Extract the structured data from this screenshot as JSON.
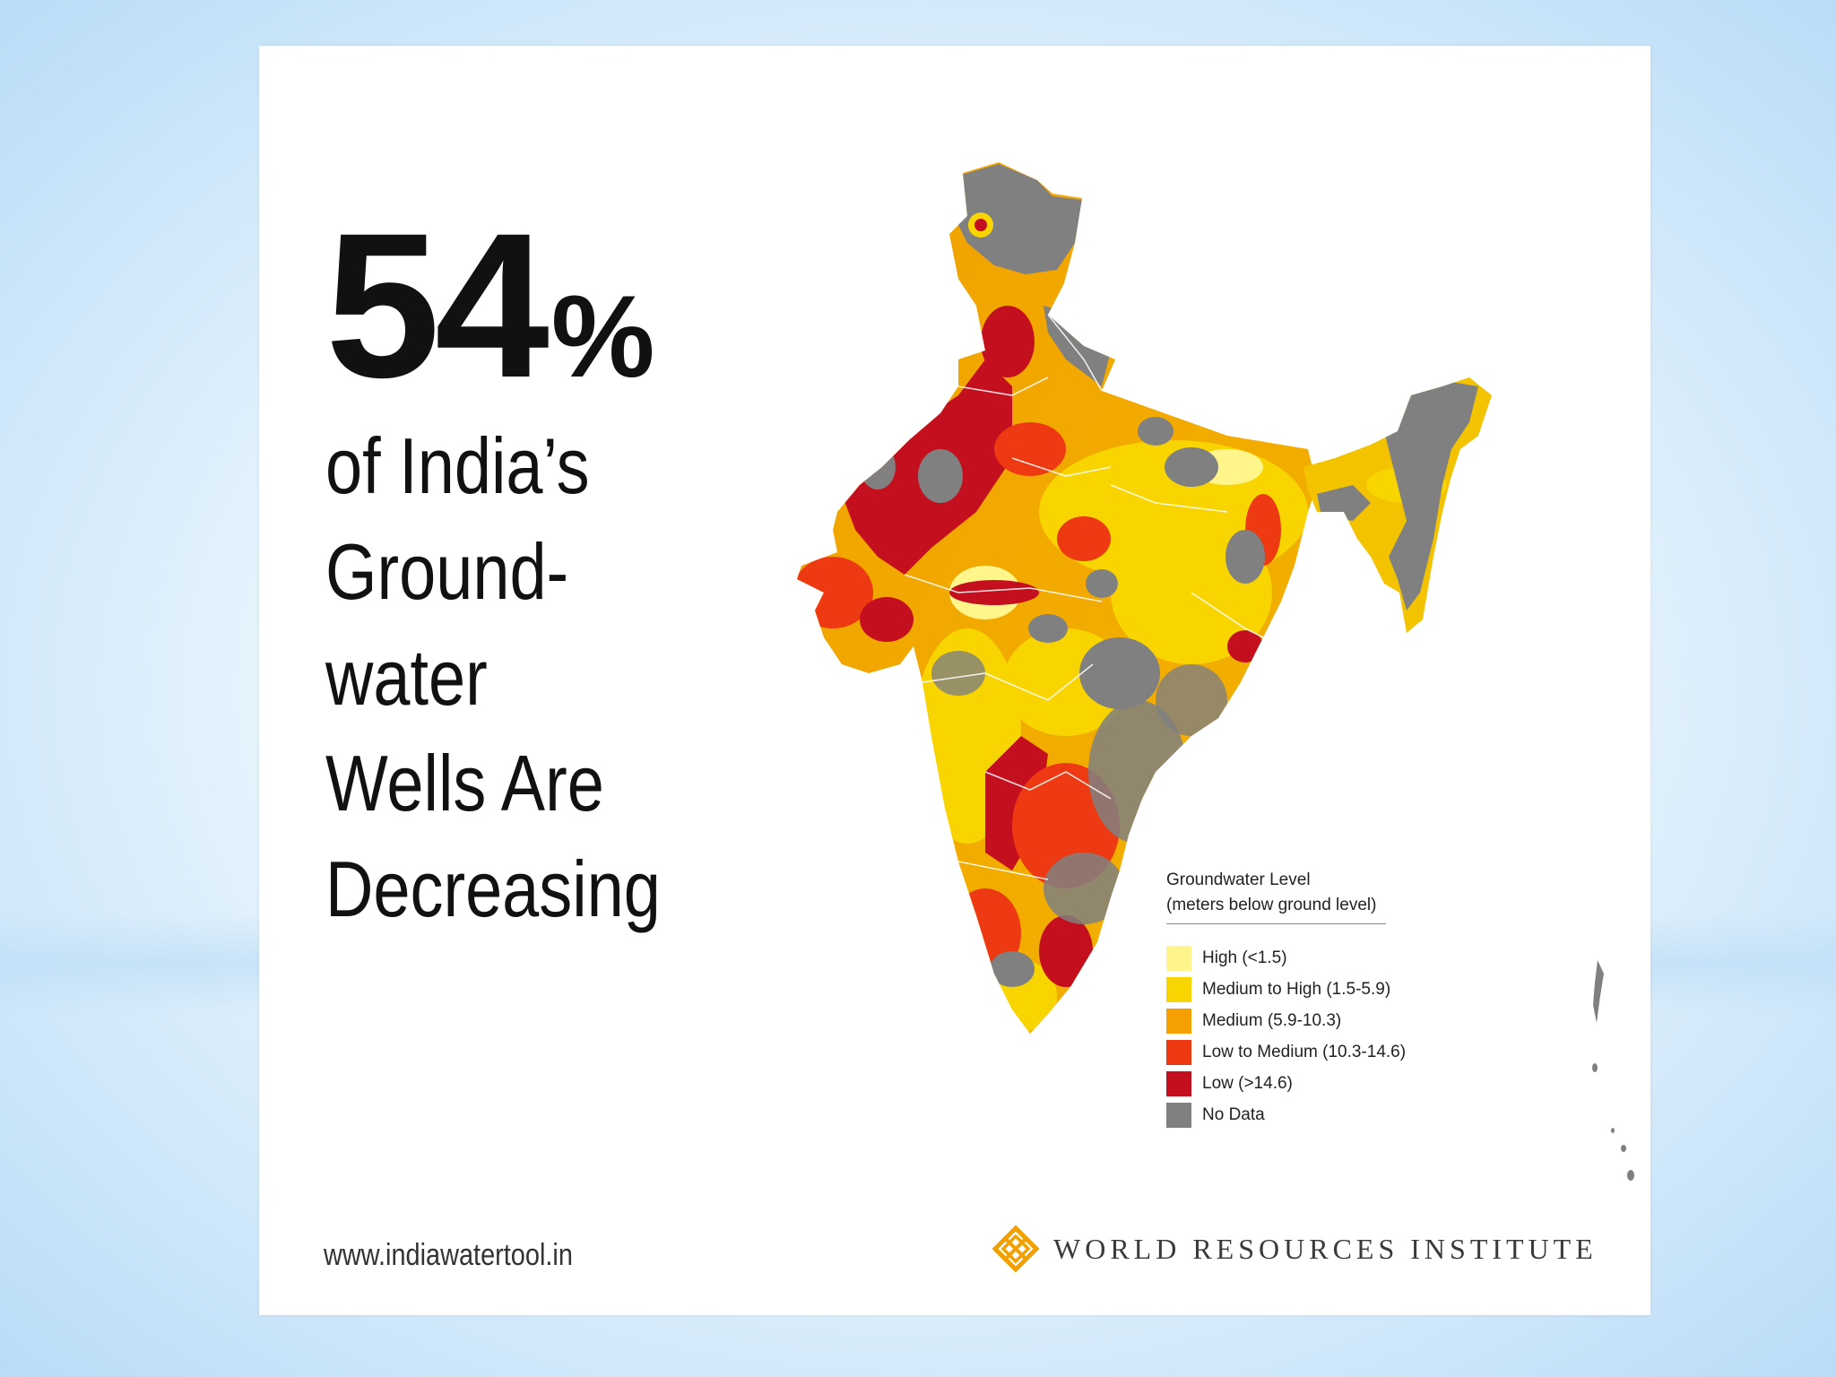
{
  "headline": {
    "number": "54",
    "percent_sign": "%"
  },
  "subtitle_lines": [
    "of India’s",
    "Ground-",
    "water",
    "Wells Are",
    "Decreasing"
  ],
  "legend": {
    "title_line1": "Groundwater Level",
    "title_line2": "(meters below ground level)",
    "items": [
      {
        "label": "High (<1.5)",
        "color": "#FFF58A"
      },
      {
        "label": "Medium to High (1.5-5.9)",
        "color": "#F8D400"
      },
      {
        "label": "Medium (5.9-10.3)",
        "color": "#F5A000"
      },
      {
        "label": "Low to Medium (10.3-14.6)",
        "color": "#EE3A12"
      },
      {
        "label": "Low (>14.6)",
        "color": "#C40F1F"
      },
      {
        "label": "No Data",
        "color": "#808080"
      }
    ]
  },
  "footer": {
    "url": "www.indiawatertool.in",
    "organization": "WORLD RESOURCES INSTITUTE"
  },
  "icons": {
    "logo": "world-resources-institute-logo-icon"
  }
}
